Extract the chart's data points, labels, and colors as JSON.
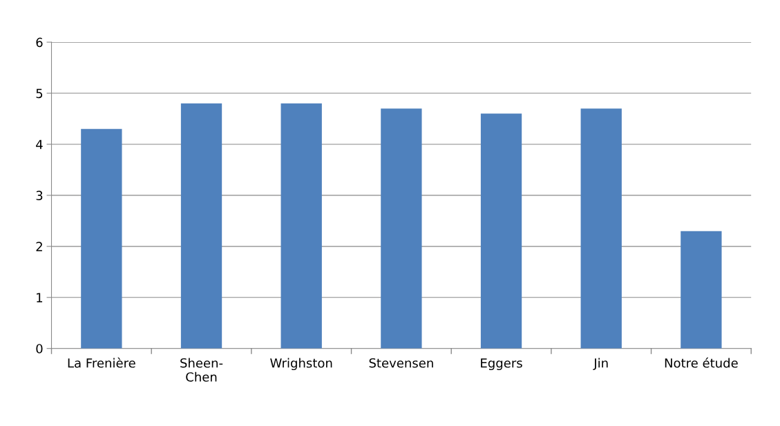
{
  "chart_data": {
    "type": "bar",
    "categories": [
      "La Frenière",
      "Sheen-Chen",
      "Wrighston",
      "Stevensen",
      "Eggers",
      "Jin",
      "Notre étude"
    ],
    "values": [
      4.3,
      4.8,
      4.8,
      4.7,
      4.6,
      4.7,
      2.3
    ],
    "color": "#4f81bd",
    "ylim": [
      0,
      6
    ],
    "yticks": [
      0,
      1,
      2,
      3,
      4,
      5,
      6
    ],
    "grid": "y"
  }
}
